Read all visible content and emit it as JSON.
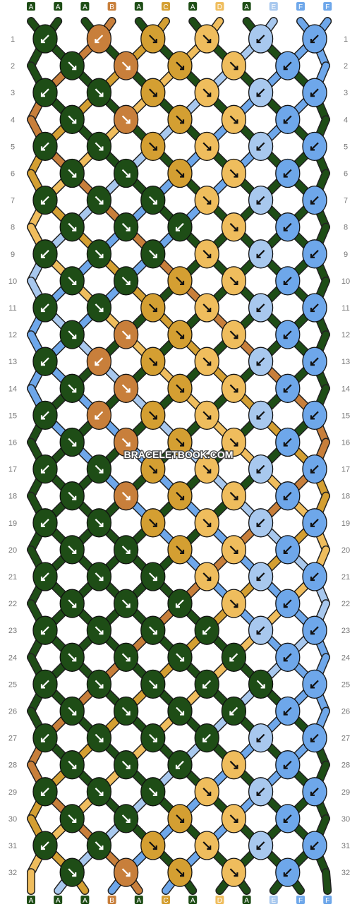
{
  "watermark": "BRACELETBOOK.COM",
  "colors": {
    "A": "#1e4d16",
    "B": "#c87f3b",
    "C": "#d49f32",
    "D": "#efbd5d",
    "E": "#a8c8ee",
    "F": "#6ea7ea"
  },
  "top_threads": [
    "A",
    "A",
    "A",
    "B",
    "A",
    "C",
    "A",
    "D",
    "A",
    "E",
    "F",
    "F"
  ],
  "bottom_threads": [
    "A",
    "A",
    "A",
    "B",
    "A",
    "C",
    "A",
    "D",
    "A",
    "E",
    "F",
    "F"
  ],
  "row_numbers": [
    "1",
    "2",
    "3",
    "4",
    "5",
    "6",
    "7",
    "8",
    "9",
    "10",
    "11",
    "12",
    "13",
    "14",
    "15",
    "16",
    "17",
    "18",
    "19",
    "20",
    "21",
    "22",
    "23",
    "24",
    "25",
    "26",
    "27",
    "28",
    "29",
    "30",
    "31",
    "32"
  ],
  "knot_colors": [
    [
      "A",
      "B",
      "C",
      "D",
      "E",
      "F"
    ],
    [
      "A",
      "B",
      "C",
      "D",
      "F"
    ],
    [
      "A",
      "A",
      "C",
      "D",
      "E",
      "F"
    ],
    [
      "A",
      "B",
      "C",
      "D",
      "F"
    ],
    [
      "A",
      "A",
      "C",
      "D",
      "E",
      "F"
    ],
    [
      "A",
      "A",
      "C",
      "D",
      "F"
    ],
    [
      "A",
      "A",
      "A",
      "D",
      "E",
      "F"
    ],
    [
      "A",
      "A",
      "A",
      "D",
      "F"
    ],
    [
      "A",
      "A",
      "A",
      "D",
      "E",
      "F"
    ],
    [
      "A",
      "A",
      "C",
      "D",
      "F"
    ],
    [
      "A",
      "A",
      "C",
      "D",
      "E",
      "F"
    ],
    [
      "A",
      "B",
      "C",
      "D",
      "F"
    ],
    [
      "A",
      "B",
      "C",
      "D",
      "E",
      "F"
    ],
    [
      "A",
      "B",
      "C",
      "D",
      "F"
    ],
    [
      "A",
      "B",
      "C",
      "D",
      "E",
      "F"
    ],
    [
      "A",
      "B",
      "C",
      "D",
      "F"
    ],
    [
      "A",
      "A",
      "C",
      "D",
      "E",
      "F"
    ],
    [
      "A",
      "B",
      "C",
      "D",
      "F"
    ],
    [
      "A",
      "A",
      "C",
      "D",
      "E",
      "F"
    ],
    [
      "A",
      "A",
      "C",
      "D",
      "F"
    ],
    [
      "A",
      "A",
      "A",
      "D",
      "E",
      "F"
    ],
    [
      "A",
      "A",
      "A",
      "D",
      "F"
    ],
    [
      "A",
      "A",
      "A",
      "A",
      "E",
      "F"
    ],
    [
      "A",
      "A",
      "A",
      "A",
      "F"
    ],
    [
      "A",
      "A",
      "A",
      "A",
      "A",
      "F"
    ],
    [
      "A",
      "A",
      "A",
      "A",
      "F"
    ],
    [
      "A",
      "A",
      "A",
      "A",
      "E",
      "F"
    ],
    [
      "A",
      "A",
      "A",
      "D",
      "F"
    ],
    [
      "A",
      "A",
      "A",
      "D",
      "E",
      "F"
    ],
    [
      "A",
      "A",
      "C",
      "D",
      "F"
    ],
    [
      "A",
      "A",
      "C",
      "D",
      "E",
      "F"
    ],
    [
      "A",
      "B",
      "C",
      "D",
      "F"
    ]
  ],
  "knot_arrows": [
    [
      "sw",
      "sw",
      "se",
      "se",
      "sw",
      "sw"
    ],
    [
      "se",
      "se",
      "se",
      "se",
      "sw"
    ],
    [
      "sw",
      "se",
      "se",
      "se",
      "sw",
      "sw"
    ],
    [
      "se",
      "se",
      "se",
      "se",
      "sw"
    ],
    [
      "sw",
      "se",
      "se",
      "se",
      "sw",
      "sw"
    ],
    [
      "se",
      "se",
      "se",
      "se",
      "sw"
    ],
    [
      "sw",
      "se",
      "se",
      "se",
      "sw",
      "sw"
    ],
    [
      "se",
      "se",
      "sw",
      "se",
      "sw"
    ],
    [
      "sw",
      "se",
      "se",
      "se",
      "sw",
      "sw"
    ],
    [
      "se",
      "se",
      "se",
      "se",
      "sw"
    ],
    [
      "sw",
      "se",
      "se",
      "se",
      "sw",
      "sw"
    ],
    [
      "se",
      "se",
      "se",
      "se",
      "sw"
    ],
    [
      "sw",
      "sw",
      "se",
      "se",
      "sw",
      "sw"
    ],
    [
      "se",
      "se",
      "se",
      "se",
      "sw"
    ],
    [
      "sw",
      "sw",
      "se",
      "se",
      "sw",
      "sw"
    ],
    [
      "se",
      "se",
      "se",
      "se",
      "sw"
    ],
    [
      "sw",
      "se",
      "se",
      "se",
      "sw",
      "sw"
    ],
    [
      "se",
      "se",
      "se",
      "se",
      "sw"
    ],
    [
      "sw",
      "se",
      "se",
      "se",
      "sw",
      "sw"
    ],
    [
      "se",
      "se",
      "se",
      "se",
      "sw"
    ],
    [
      "sw",
      "se",
      "se",
      "se",
      "sw",
      "sw"
    ],
    [
      "se",
      "se",
      "sw",
      "se",
      "sw"
    ],
    [
      "sw",
      "se",
      "se",
      "sw",
      "sw",
      "sw"
    ],
    [
      "se",
      "se",
      "se",
      "sw",
      "sw"
    ],
    [
      "sw",
      "se",
      "se",
      "sw",
      "se",
      "sw"
    ],
    [
      "se",
      "se",
      "se",
      "sw",
      "sw"
    ],
    [
      "sw",
      "se",
      "se",
      "sw",
      "sw",
      "sw"
    ],
    [
      "se",
      "se",
      "sw",
      "se",
      "sw"
    ],
    [
      "sw",
      "se",
      "se",
      "se",
      "sw",
      "sw"
    ],
    [
      "se",
      "se",
      "se",
      "se",
      "sw"
    ],
    [
      "sw",
      "se",
      "se",
      "se",
      "sw",
      "sw"
    ],
    [
      "se",
      "se",
      "se",
      "se",
      "sw"
    ]
  ]
}
